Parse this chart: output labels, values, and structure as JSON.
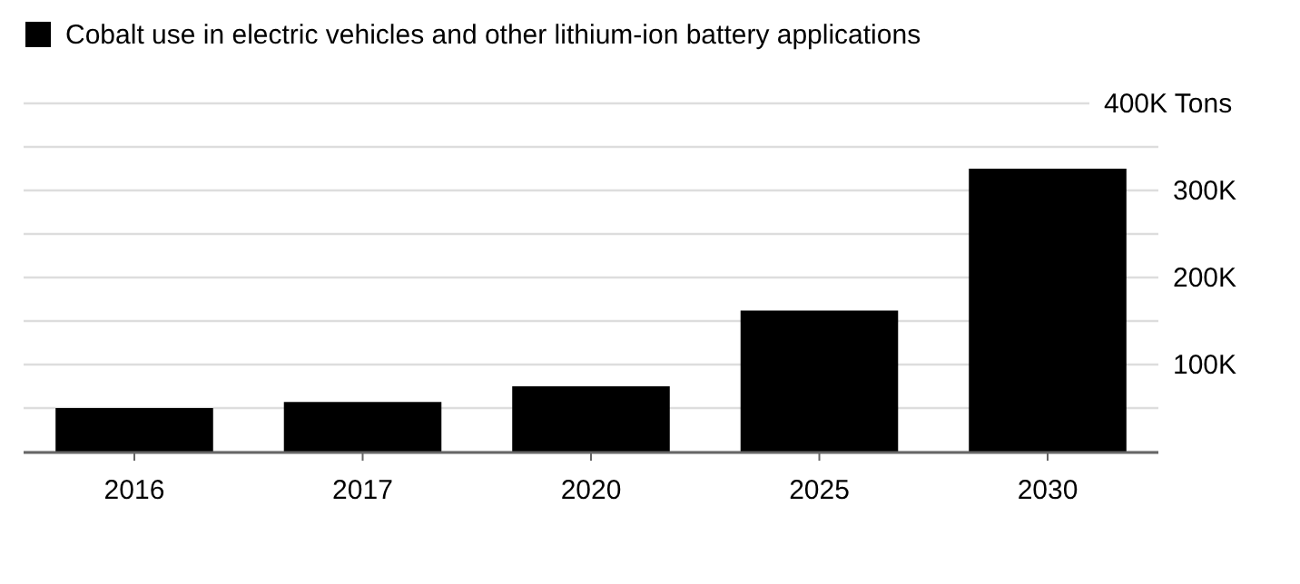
{
  "chart_data": {
    "type": "bar",
    "categories": [
      "2016",
      "2017",
      "2020",
      "2025",
      "2030"
    ],
    "series": [
      {
        "name": "Cobalt use in electric vehicles and other lithium-ion battery applications",
        "color": "#000000",
        "values": [
          50000,
          57000,
          75000,
          162000,
          325000
        ]
      }
    ],
    "ylim": [
      0,
      400000
    ],
    "yticks": [
      {
        "value": 0,
        "label": null
      },
      {
        "value": 50000,
        "label": null
      },
      {
        "value": 100000,
        "label": "100K"
      },
      {
        "value": 150000,
        "label": null
      },
      {
        "value": 200000,
        "label": "200K"
      },
      {
        "value": 250000,
        "label": null
      },
      {
        "value": 300000,
        "label": "300K"
      },
      {
        "value": 350000,
        "label": null
      },
      {
        "value": 400000,
        "label": "400K Tons"
      }
    ],
    "grid": "y",
    "legend": "top left"
  }
}
